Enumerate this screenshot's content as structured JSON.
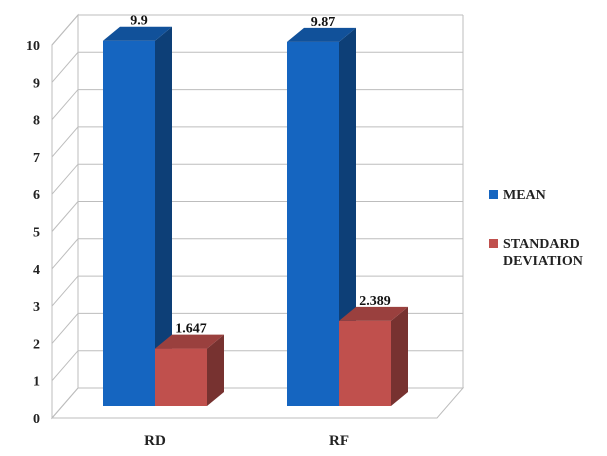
{
  "chart_data": {
    "type": "bar",
    "categories": [
      "RD",
      "RF"
    ],
    "series": [
      {
        "name": "MEAN",
        "values": [
          9.9,
          9.87
        ],
        "labels": [
          "9.9",
          "9.87"
        ],
        "color": "#1565C0"
      },
      {
        "name": "STANDARD DEVIATION",
        "values": [
          1.647,
          2.389
        ],
        "labels": [
          "1.647",
          "2.389"
        ],
        "color": "#C0504D"
      }
    ],
    "ylim": [
      0,
      10
    ],
    "yticks": [
      "0",
      "1",
      "2",
      "3",
      "4",
      "5",
      "6",
      "7",
      "8",
      "9",
      "10"
    ],
    "grid": true,
    "legend_position": "right",
    "three_d": true
  }
}
